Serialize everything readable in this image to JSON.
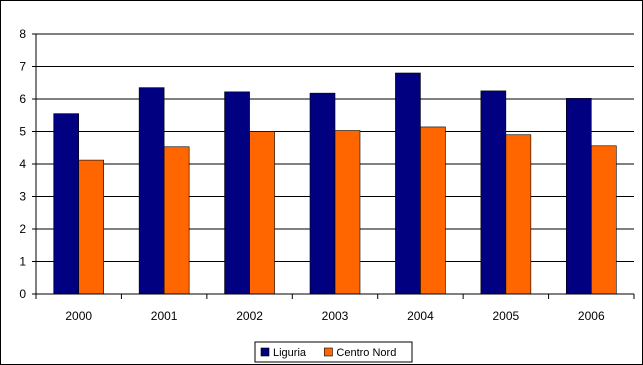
{
  "chart_data": {
    "type": "bar",
    "categories": [
      "2000",
      "2001",
      "2002",
      "2003",
      "2004",
      "2005",
      "2006"
    ],
    "series": [
      {
        "name": "Liguria",
        "color": "#000080",
        "values": [
          5.55,
          6.35,
          6.22,
          6.18,
          6.8,
          6.25,
          6.02
        ]
      },
      {
        "name": "Centro Nord",
        "color": "#FF6600",
        "values": [
          4.12,
          4.53,
          5.0,
          5.03,
          5.14,
          4.9,
          4.56
        ]
      }
    ],
    "ylim": [
      0,
      8
    ],
    "yticks": [
      "0",
      "1",
      "2",
      "3",
      "4",
      "5",
      "6",
      "7",
      "8"
    ],
    "grid": true,
    "legend_position": "bottom"
  }
}
